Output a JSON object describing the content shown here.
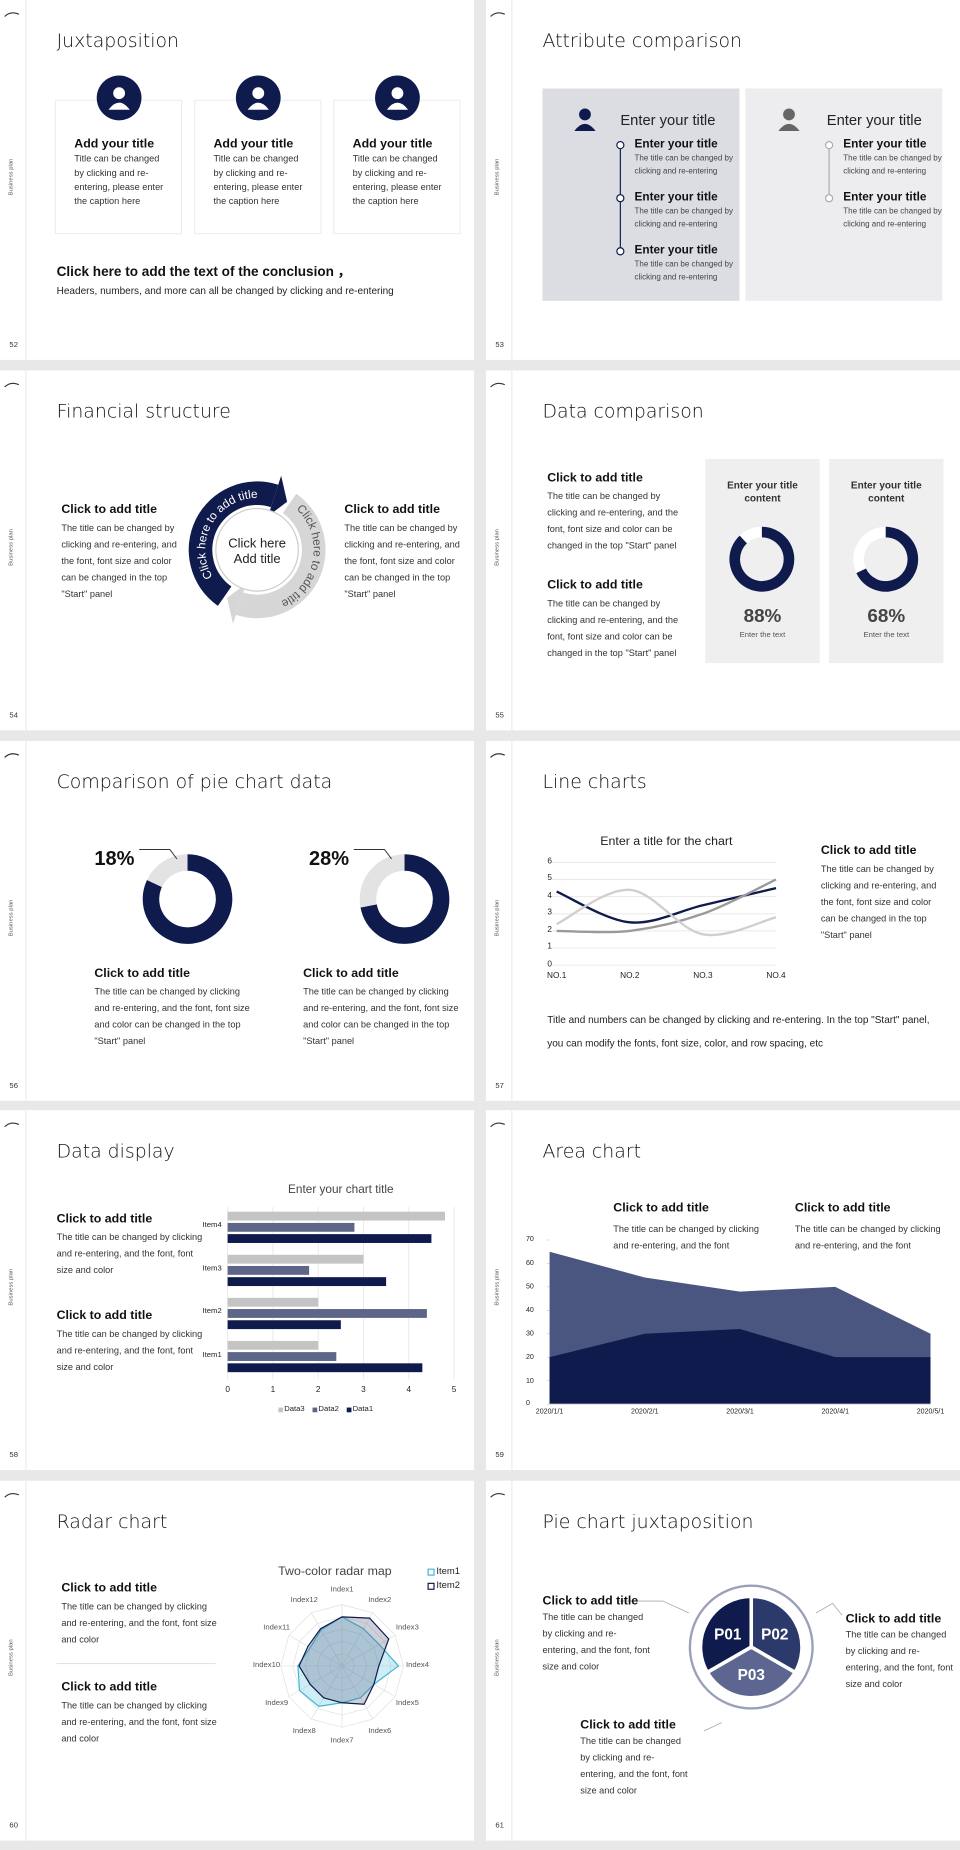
{
  "side_label": "Business plan",
  "slides": [
    {
      "page": "52",
      "title": "Juxtaposition",
      "cards": [
        {
          "title": "Add your title",
          "text": "Title can be changed by clicking and re-entering, please enter the caption here"
        },
        {
          "title": "Add your title",
          "text": "Title can be changed by clicking and re-entering, please enter the caption here"
        },
        {
          "title": "Add your title",
          "text": "Title can be changed by clicking and re-entering, please enter the caption here"
        }
      ],
      "conclusion": "Click here to add the text of the conclusion ，",
      "note": "Headers, numbers, and more can all be changed by clicking and re-entering"
    },
    {
      "page": "53",
      "title": "Attribute comparison",
      "panels": [
        {
          "heading": "Enter your title",
          "items": [
            {
              "title": "Enter your title",
              "text": "The title can be changed by clicking and re-entering"
            },
            {
              "title": "Enter your title",
              "text": "The title can be changed by clicking and re-entering"
            },
            {
              "title": "Enter your title",
              "text": "The title can be changed by clicking and re-entering"
            }
          ]
        },
        {
          "heading": "Enter your title",
          "items": [
            {
              "title": "Enter your title",
              "text": "The title can be changed by clicking and re-entering"
            },
            {
              "title": "Enter your title",
              "text": "The title can be changed by clicking and re-entering"
            }
          ]
        }
      ]
    },
    {
      "page": "54",
      "title": "Financial structure",
      "blocks": [
        {
          "title": "Click to add title",
          "text": "The title can be changed by clicking and re-entering, and the font, font size and color can be changed in the top \"Start\" panel"
        },
        {
          "title": "Click to add title",
          "text": "The title can be changed by clicking and re-entering, and the font, font size and color can be changed in the top \"Start\" panel"
        }
      ],
      "center": "Click here Add title",
      "arc_labels": [
        "Click here to add title",
        "Click here to add title"
      ]
    },
    {
      "page": "55",
      "title": "Data comparison",
      "blocks": [
        {
          "title": "Click to add title",
          "text": "The title can be changed by clicking and re-entering, and the font, font size and color can be changed in the top \"Start\" panel"
        },
        {
          "title": "Click to add title",
          "text": "The title can be changed by clicking and re-entering, and the font, font size and color can be changed in the top \"Start\" panel"
        }
      ],
      "cards": [
        {
          "label": "Enter your title content",
          "value": 88,
          "value_label": "88%",
          "caption": "Enter the text"
        },
        {
          "label": "Enter your title content",
          "value": 68,
          "value_label": "68%",
          "caption": "Enter the text"
        }
      ]
    },
    {
      "page": "56",
      "title": "Comparison of pie chart data",
      "pies": [
        {
          "value": 18,
          "value_label": "18%",
          "title": "Click to add title",
          "text": "The title can be changed by clicking and re-entering, and the font, font size and color can be changed in the top \"Start\" panel"
        },
        {
          "value": 28,
          "value_label": "28%",
          "title": "Click to add title",
          "text": "The title can be changed by clicking and re-entering, and the font, font size and color can be changed in the top \"Start\" panel"
        }
      ]
    },
    {
      "page": "57",
      "title": "Line charts",
      "chart": {
        "type": "line",
        "title": "Enter a title for the chart",
        "categories": [
          "NO.1",
          "NO.2",
          "NO.3",
          "NO.4"
        ],
        "series": [
          {
            "color": "#0f1a4d",
            "values": [
              4.3,
              2.5,
              3.5,
              4.5
            ]
          },
          {
            "color": "#9a9a9a",
            "values": [
              2,
              2,
              3,
              5
            ]
          },
          {
            "color": "#cfcfcf",
            "values": [
              2.4,
              4.4,
              1.8,
              2.8
            ]
          }
        ],
        "ylim": [
          0,
          6
        ],
        "yticks": [
          0,
          1,
          2,
          3,
          4,
          5,
          6
        ],
        "grid": true,
        "smooth": true
      },
      "block": {
        "title": "Click to add title",
        "text": "The title can be changed by clicking and re-entering, and the font, font size and color can be changed in the top \"Start\" panel"
      },
      "note": "Title and numbers can be changed by clicking and re-entering. In the top \"Start\" panel, you can modify the fonts, font size, color, and row spacing, etc"
    },
    {
      "page": "58",
      "title": "Data display",
      "chart": {
        "type": "bar",
        "orientation": "horizontal",
        "title": "Enter your chart title",
        "categories": [
          "Item1",
          "Item2",
          "Item3",
          "Item4"
        ],
        "series": [
          {
            "name": "Data1",
            "color": "#0f1a4d",
            "values": [
              4.3,
              2.5,
              3.5,
              4.5
            ]
          },
          {
            "name": "Data2",
            "color": "#5d6688",
            "values": [
              2.4,
              4.4,
              1.8,
              2.8
            ]
          },
          {
            "name": "Data3",
            "color": "#c4c4c4",
            "values": [
              2,
              2,
              3,
              4.8
            ]
          }
        ],
        "xlim": [
          0,
          5
        ],
        "xticks": [
          0,
          1,
          2,
          3,
          4,
          5
        ],
        "grid": true,
        "legend": "bottom"
      },
      "blocks": [
        {
          "title": "Click to add title",
          "text": "The title can be changed by clicking and re-entering, and the font, font size and color"
        },
        {
          "title": "Click to add title",
          "text": "The title can be changed by clicking and re-entering, and the font, font size and color"
        }
      ]
    },
    {
      "page": "59",
      "title": "Area chart",
      "chart": {
        "type": "area",
        "x": [
          "2020/1/1",
          "2020/2/1",
          "2020/3/1",
          "2020/4/1",
          "2020/5/1"
        ],
        "series": [
          {
            "color": "#4b5680",
            "values": [
              65,
              54,
              48,
              50,
              30
            ]
          },
          {
            "color": "#0f1a4d",
            "values": [
              20,
              30,
              32,
              20,
              20
            ]
          }
        ],
        "ylim": [
          0,
          70
        ],
        "yticks": [
          0,
          10,
          20,
          30,
          40,
          50,
          60,
          70
        ]
      },
      "blocks": [
        {
          "title": "Click to add title",
          "text": "The title can be changed by clicking and re-entering, and the font"
        },
        {
          "title": "Click to add title",
          "text": "The title can be changed by clicking and re-entering, and the font"
        }
      ]
    },
    {
      "page": "60",
      "title": "Radar chart",
      "chart": {
        "type": "radar",
        "title": "Two-color radar map",
        "categories": [
          "Index1",
          "Index2",
          "Index3",
          "Index4",
          "Index5",
          "Index6",
          "Index7",
          "Index8",
          "Index9",
          "Index10",
          "Index11",
          "Index12"
        ],
        "series": [
          {
            "name": "Item1",
            "color": "#3fb6d8",
            "values": [
              4,
              3.5,
              3.5,
              4.6,
              3,
              3,
              3,
              3.8,
              4,
              3.6,
              3,
              3.4
            ]
          },
          {
            "name": "Item2",
            "color": "#0f1a4d",
            "values": [
              4,
              4.5,
              4.4,
              3,
              3,
              3.6,
              3,
              3,
              3,
              3.5,
              3.2,
              3.5
            ]
          }
        ],
        "rlim": [
          0,
          5
        ],
        "legend": "upper right"
      },
      "blocks": [
        {
          "title": "Click to add title",
          "text": "The title can be changed by clicking and re-entering, and the font, font size and color"
        },
        {
          "title": "Click to add title",
          "text": "The title can be changed by clicking and re-entering, and the font, font size and color"
        }
      ]
    },
    {
      "page": "61",
      "title": "Pie chart juxtaposition",
      "segments": [
        {
          "label": "P01",
          "color": "#0f1a4d"
        },
        {
          "label": "P02",
          "color": "#2c3a6b"
        },
        {
          "label": "P03",
          "color": "#5c6690"
        }
      ],
      "blocks": [
        {
          "title": "Click to add title",
          "text": "The title can be changed by clicking and re-entering, and the font, font size and color"
        },
        {
          "title": "Click to add title",
          "text": "The title can be changed by clicking and re-entering, and the font, font size and color"
        },
        {
          "title": "Click to add title",
          "text": "The title can be changed by clicking and re-entering, and the font, font size and color"
        }
      ]
    }
  ]
}
